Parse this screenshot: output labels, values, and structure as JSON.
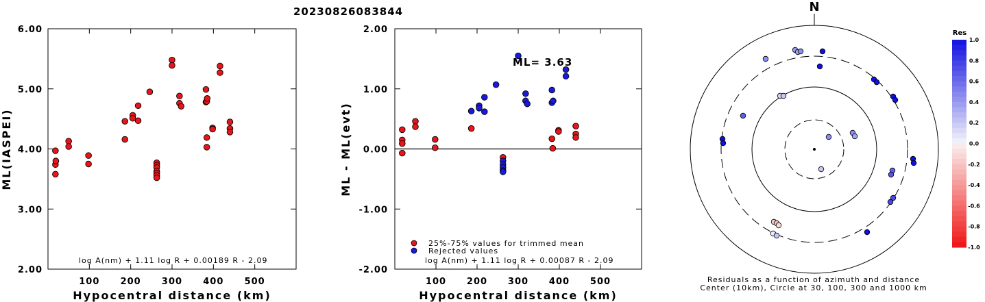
{
  "title": "20230826083844",
  "chart_data": [
    {
      "type": "scatter",
      "name": "ml-vs-distance",
      "xlabel": "Hypocentral distance (km)",
      "ylabel": "ML(IASPEI)",
      "xlim": [
        0,
        600
      ],
      "ylim": [
        2.0,
        6.0
      ],
      "xticks": [
        "100",
        "200",
        "300",
        "400",
        "500"
      ],
      "yticks": [
        "2.00",
        "3.00",
        "4.00",
        "5.00",
        "6.00"
      ],
      "formula": "log A(nm) + 1.11 log R + 0.00189 R - 2.09",
      "series": [
        {
          "color": "#e8161b",
          "points": [
            [
              18,
              3.97
            ],
            [
              18,
              3.74
            ],
            [
              19,
              3.8
            ],
            [
              18,
              3.58
            ],
            [
              50,
              4.13
            ],
            [
              50,
              4.04
            ],
            [
              98,
              3.89
            ],
            [
              98,
              3.75
            ],
            [
              186,
              4.46
            ],
            [
              186,
              4.16
            ],
            [
              205,
              4.56
            ],
            [
              205,
              4.51
            ],
            [
              218,
              4.72
            ],
            [
              218,
              4.47
            ],
            [
              246,
              4.95
            ],
            [
              263,
              3.77
            ],
            [
              263,
              3.73
            ],
            [
              263,
              3.69
            ],
            [
              263,
              3.63
            ],
            [
              263,
              3.6
            ],
            [
              263,
              3.56
            ],
            [
              263,
              3.52
            ],
            [
              300,
              5.48
            ],
            [
              300,
              5.39
            ],
            [
              318,
              4.88
            ],
            [
              318,
              4.76
            ],
            [
              322,
              4.71
            ],
            [
              382,
              4.99
            ],
            [
              382,
              4.78
            ],
            [
              384,
              4.79
            ],
            [
              385,
              4.84
            ],
            [
              384,
              4.19
            ],
            [
              384,
              4.03
            ],
            [
              398,
              4.35
            ],
            [
              398,
              4.33
            ],
            [
              416,
              5.38
            ],
            [
              416,
              5.27
            ],
            [
              440,
              4.45
            ],
            [
              440,
              4.34
            ],
            [
              440,
              4.28
            ]
          ]
        }
      ]
    },
    {
      "type": "scatter",
      "name": "residual-vs-distance",
      "xlabel": "Hypocentral distance (km)",
      "ylabel": "ML - ML(evt)",
      "xlim": [
        0,
        600
      ],
      "ylim": [
        -2.0,
        2.0
      ],
      "xticks": [
        "100",
        "200",
        "300",
        "400",
        "500"
      ],
      "yticks": [
        "-2.00",
        "-1.00",
        "0.00",
        "1.00",
        "2.00"
      ],
      "annotation": "ML= 3.63",
      "formula": "log A(nm) + 1.11 log R + 0.00087 R - 2.09",
      "legend": [
        {
          "label": "25%-75% values for trimmed mean",
          "color": "#e8161b"
        },
        {
          "label": "Rejected values",
          "color": "#1a1adc"
        }
      ],
      "series": [
        {
          "name": "25%-75% values for trimmed mean",
          "color": "#e8161b",
          "points": [
            [
              18,
              0.32
            ],
            [
              18,
              0.15
            ],
            [
              18,
              0.09
            ],
            [
              18,
              -0.07
            ],
            [
              50,
              0.46
            ],
            [
              50,
              0.37
            ],
            [
              98,
              0.16
            ],
            [
              98,
              0.02
            ],
            [
              186,
              0.34
            ],
            [
              263,
              -0.14
            ],
            [
              382,
              0.17
            ],
            [
              384,
              0.01
            ],
            [
              398,
              0.31
            ],
            [
              398,
              0.29
            ],
            [
              440,
              0.38
            ],
            [
              440,
              0.25
            ],
            [
              440,
              0.19
            ]
          ]
        },
        {
          "name": "Rejected values",
          "color": "#1a1adc",
          "points": [
            [
              186,
              0.63
            ],
            [
              205,
              0.72
            ],
            [
              205,
              0.68
            ],
            [
              218,
              0.86
            ],
            [
              218,
              0.62
            ],
            [
              246,
              1.07
            ],
            [
              263,
              -0.2
            ],
            [
              263,
              -0.26
            ],
            [
              263,
              -0.31
            ],
            [
              263,
              -0.36
            ],
            [
              263,
              -0.38
            ],
            [
              300,
              1.55
            ],
            [
              318,
              0.92
            ],
            [
              318,
              0.8
            ],
            [
              322,
              0.75
            ],
            [
              382,
              0.98
            ],
            [
              382,
              0.77
            ],
            [
              385,
              0.8
            ],
            [
              416,
              1.32
            ],
            [
              416,
              1.21
            ]
          ]
        }
      ]
    },
    {
      "type": "polar-scatter",
      "name": "residual-azimuth-map",
      "north_label": "N",
      "caption_line1": "Residuals as a function of azimuth and distance",
      "caption_line2": "Center (10km), Circle at 30, 100, 300 and 1000 km",
      "colorbar_title": "Res",
      "colorbar_ticks": [
        "1.0",
        "0.8",
        "0.6",
        "0.4",
        "0.2",
        "0.0",
        "-0.2",
        "-0.4",
        "-0.6",
        "-0.8",
        "-1.0"
      ],
      "stations": [
        {
          "dx": -71,
          "dy": -132,
          "res": 0.45
        },
        {
          "dx": -28,
          "dy": -145,
          "res": 0.4
        },
        {
          "dx": -24,
          "dy": -142,
          "res": 0.35
        },
        {
          "dx": -20,
          "dy": -143,
          "res": 0.45
        },
        {
          "dx": 12,
          "dy": -143,
          "res": 1.0
        },
        {
          "dx": 8,
          "dy": -121,
          "res": 1.0
        },
        {
          "dx": 87,
          "dy": -102,
          "res": 1.0
        },
        {
          "dx": 91,
          "dy": -98,
          "res": 1.0
        },
        {
          "dx": 115,
          "dy": -77,
          "res": 1.0
        },
        {
          "dx": 118,
          "dy": -72,
          "res": 1.0
        },
        {
          "dx": -104,
          "dy": -49,
          "res": 0.65
        },
        {
          "dx": -50,
          "dy": -78,
          "res": 0.15
        },
        {
          "dx": -45,
          "dy": -78,
          "res": 0.2
        },
        {
          "dx": -134,
          "dy": -15,
          "res": 1.0
        },
        {
          "dx": -133,
          "dy": -9,
          "res": 1.0
        },
        {
          "dx": 56,
          "dy": -24,
          "res": 0.45
        },
        {
          "dx": 59,
          "dy": -19,
          "res": 0.35
        },
        {
          "dx": 21,
          "dy": -18,
          "res": 0.45
        },
        {
          "dx": 10,
          "dy": 29,
          "res": 0.2
        },
        {
          "dx": 144,
          "dy": 14,
          "res": 1.0
        },
        {
          "dx": 145,
          "dy": 20,
          "res": 1.0
        },
        {
          "dx": 114,
          "dy": 31,
          "res": 0.65
        },
        {
          "dx": 112,
          "dy": 37,
          "res": 0.7
        },
        {
          "dx": 115,
          "dy": 71,
          "res": 0.75
        },
        {
          "dx": 111,
          "dy": 77,
          "res": 0.75
        },
        {
          "dx": -59,
          "dy": 106,
          "res": -0.15
        },
        {
          "dx": -55,
          "dy": 108,
          "res": -0.2
        },
        {
          "dx": -52,
          "dy": 111,
          "res": -0.1
        },
        {
          "dx": -60,
          "dy": 123,
          "res": 0.05
        },
        {
          "dx": -55,
          "dy": 126,
          "res": 0.2
        },
        {
          "dx": 77,
          "dy": 121,
          "res": 1.0
        }
      ]
    }
  ]
}
